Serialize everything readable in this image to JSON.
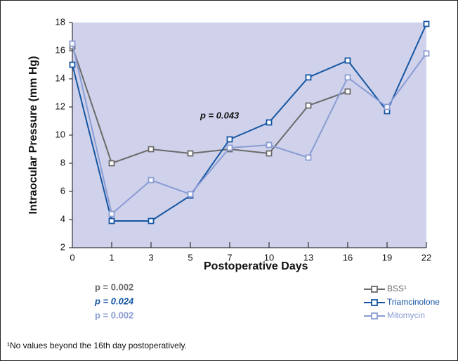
{
  "chart_data": {
    "type": "line",
    "xlabel": "Postoperative Days",
    "ylabel": "Intraocular Pressure (mm Hg)",
    "categories": [
      0,
      1,
      3,
      5,
      7,
      10,
      13,
      16,
      19,
      22
    ],
    "ylim": [
      2,
      18
    ],
    "yticks": [
      2,
      4,
      6,
      8,
      10,
      12,
      14,
      16,
      18
    ],
    "series": [
      {
        "name": "BSS¹",
        "color": "#6b6b6b",
        "values": [
          16.3,
          8.0,
          9.0,
          8.7,
          9.0,
          8.7,
          12.1,
          13.1,
          null,
          null
        ]
      },
      {
        "name": "Triamcinolone",
        "color": "#1656a3",
        "values": [
          15.0,
          3.9,
          3.9,
          5.7,
          9.7,
          10.9,
          14.1,
          15.3,
          11.7,
          17.9
        ]
      },
      {
        "name": "Mitomycin",
        "color": "#8a9cd4",
        "values": [
          16.5,
          4.4,
          6.8,
          5.8,
          9.1,
          9.3,
          8.4,
          14.1,
          12.0,
          15.8
        ]
      }
    ],
    "annotations": [
      "p = 0.043",
      "p = 0.002",
      "p = 0.024",
      "p = 0.002"
    ],
    "footnote": "¹No values beyond the 16th day postoperatively.",
    "legend": "lower right"
  }
}
